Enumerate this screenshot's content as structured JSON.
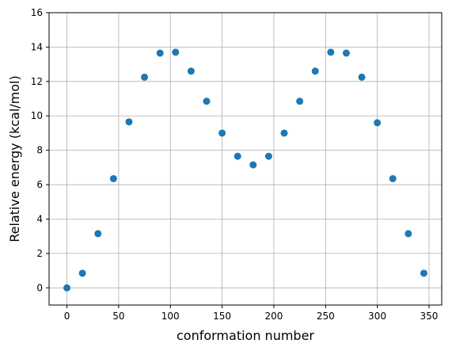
{
  "chart_data": {
    "type": "scatter",
    "title": "",
    "xlabel": "conformation number",
    "ylabel": "Relative energy (kcal/mol)",
    "xlim": [
      -17.25,
      362.25
    ],
    "ylim": [
      -1,
      16
    ],
    "xticks": [
      0,
      50,
      100,
      150,
      200,
      250,
      300,
      350
    ],
    "yticks": [
      0,
      2,
      4,
      6,
      8,
      10,
      12,
      14,
      16
    ],
    "grid": true,
    "point_color": "#1f77b4",
    "x": [
      0,
      15,
      30,
      45,
      60,
      75,
      90,
      105,
      120,
      135,
      150,
      165,
      180,
      195,
      210,
      225,
      240,
      255,
      270,
      285,
      300,
      315,
      330,
      345
    ],
    "y": [
      0.0,
      0.85,
      3.15,
      6.35,
      9.65,
      12.25,
      13.65,
      13.7,
      12.6,
      10.85,
      9.0,
      7.65,
      7.15,
      7.65,
      9.0,
      10.85,
      12.6,
      13.7,
      13.65,
      12.25,
      9.6,
      6.35,
      3.15,
      0.85
    ]
  }
}
